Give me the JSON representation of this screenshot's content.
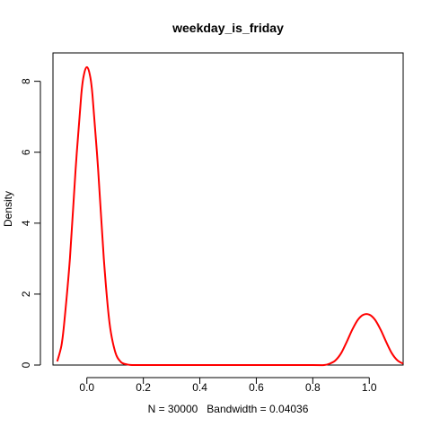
{
  "chart_data": {
    "type": "line",
    "title": "weekday_is_friday",
    "xlabel": "N = 30000   Bandwidth = 0.04036",
    "ylabel": "Density",
    "xlim": [
      -0.12,
      1.12
    ],
    "ylim": [
      0,
      8.8
    ],
    "x_ticks": [
      0.0,
      0.2,
      0.4,
      0.6,
      0.8,
      1.0
    ],
    "x_tick_labels": [
      "0.0",
      "0.2",
      "0.4",
      "0.6",
      "0.8",
      "1.0"
    ],
    "y_ticks": [
      0,
      2,
      4,
      6,
      8
    ],
    "y_tick_labels": [
      "0",
      "2",
      "4",
      "6",
      "8"
    ],
    "grid": false,
    "line_color": "#ff0000",
    "series": [
      {
        "x": [
          -0.105,
          -0.09,
          -0.08,
          -0.06,
          -0.04,
          -0.02,
          -0.01,
          0.0,
          0.01,
          0.02,
          0.04,
          0.06,
          0.08,
          0.1,
          0.12,
          0.14,
          0.16,
          0.2,
          0.4,
          0.6,
          0.8,
          0.84,
          0.86,
          0.88,
          0.9,
          0.92,
          0.94,
          0.96,
          0.98,
          1.0,
          1.02,
          1.04,
          1.06,
          1.08,
          1.1,
          1.12
        ],
        "y": [
          0.1,
          0.55,
          1.2,
          3.0,
          5.5,
          7.6,
          8.2,
          8.4,
          8.2,
          7.6,
          5.5,
          3.0,
          1.2,
          0.38,
          0.09,
          0.02,
          0.0,
          0.0,
          0.0,
          0.0,
          0.0,
          0.0,
          0.04,
          0.13,
          0.33,
          0.65,
          1.0,
          1.28,
          1.42,
          1.42,
          1.28,
          1.0,
          0.65,
          0.33,
          0.13,
          0.04
        ]
      }
    ]
  }
}
